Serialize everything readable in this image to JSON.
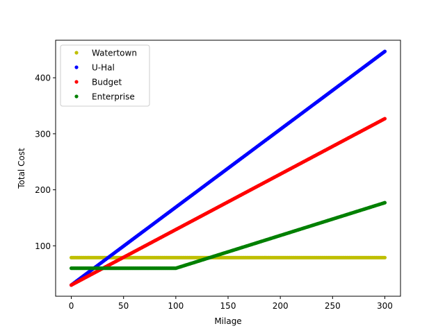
{
  "chart_data": {
    "type": "scatter",
    "xlabel": "Milage",
    "ylabel": "Total Cost",
    "xlim": [
      -15,
      315
    ],
    "ylim": [
      10,
      467
    ],
    "xticks": [
      0,
      50,
      100,
      150,
      200,
      250,
      300
    ],
    "yticks": [
      100,
      200,
      300,
      400
    ],
    "grid": false,
    "legend_position": "upper-left",
    "x_range": [
      0,
      300
    ],
    "series": [
      {
        "name": "Watertown",
        "color": "#bfbf00",
        "formula": "79",
        "points": [
          [
            0,
            79
          ],
          [
            300,
            79
          ]
        ]
      },
      {
        "name": "U-Hal",
        "color": "#0000ff",
        "formula": "30 + 1.39*x",
        "points": [
          [
            0,
            30
          ],
          [
            300,
            447
          ]
        ]
      },
      {
        "name": "Budget",
        "color": "#ff0000",
        "formula": "30 + 0.99*x",
        "points": [
          [
            0,
            30
          ],
          [
            300,
            327
          ]
        ]
      },
      {
        "name": "Enterprise",
        "color": "#008000",
        "formula": "60 if x <= 100 else 60 + 0.585*(x-100)",
        "points": [
          [
            0,
            60
          ],
          [
            100,
            60
          ],
          [
            300,
            177
          ]
        ]
      }
    ]
  }
}
